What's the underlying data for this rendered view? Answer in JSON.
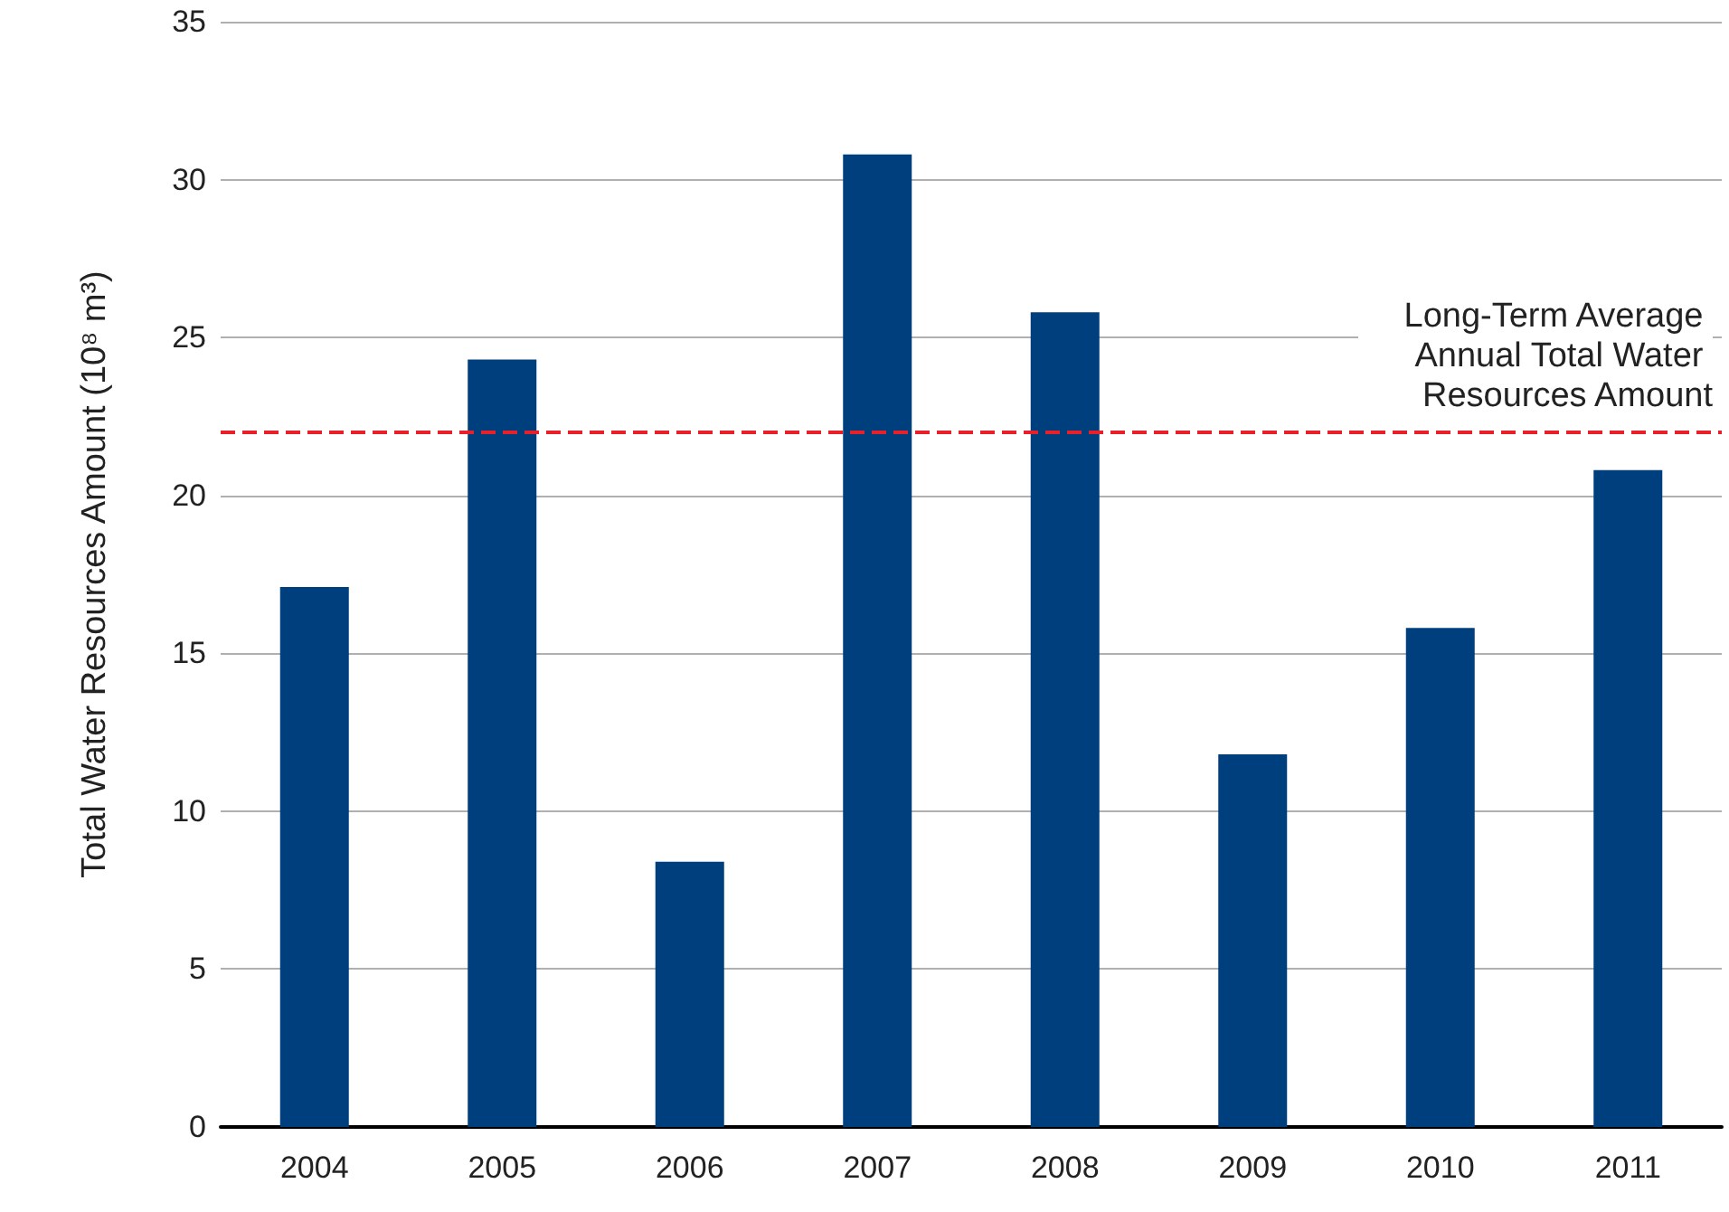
{
  "chart_data": {
    "type": "bar",
    "ylabel": "Total Water Resources Amount (10⁸ m³)",
    "categories": [
      "2004",
      "2005",
      "2006",
      "2007",
      "2008",
      "2009",
      "2010",
      "2011"
    ],
    "values": [
      17.1,
      24.3,
      8.4,
      30.8,
      25.8,
      11.8,
      15.8,
      20.8
    ],
    "color": "#003f7d",
    "ylim": [
      0,
      35
    ],
    "yticks": [
      0,
      5,
      10,
      15,
      20,
      25,
      30,
      35
    ],
    "grid": "y",
    "ref_lines": [
      {
        "axis": "y",
        "value": 22.0,
        "label": "Long-Term Average Annual Total Water Resources Amount",
        "color": "#e8202a",
        "line_style": "dashed"
      }
    ]
  }
}
